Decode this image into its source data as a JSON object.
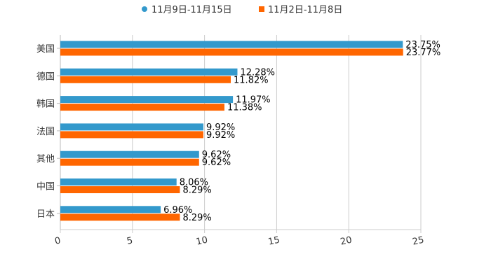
{
  "chart_data": {
    "type": "bar",
    "orientation": "horizontal",
    "categories": [
      "美国",
      "德国",
      "韩国",
      "法国",
      "其他",
      "中国",
      "日本"
    ],
    "series": [
      {
        "name": "11月9日-11月15日",
        "color": "#3399cc",
        "values": [
          23.75,
          12.28,
          11.97,
          9.92,
          9.62,
          8.06,
          6.96
        ],
        "labels": [
          "23.75%",
          "12.28%",
          "11.97%",
          "9.92%",
          "9.62%",
          "8.06%",
          "6.96%"
        ]
      },
      {
        "name": "11月2日-11月8日",
        "color": "#ff6600",
        "values": [
          23.77,
          11.82,
          11.38,
          9.92,
          9.62,
          8.29,
          8.29
        ],
        "labels": [
          "23.77%",
          "11.82%",
          "11.38%",
          "9.92%",
          "9.62%",
          "8.29%",
          "8.29%"
        ]
      }
    ],
    "xlim": [
      0,
      25
    ],
    "xticks": [
      0,
      5,
      10,
      15,
      20,
      25
    ],
    "xtick_labels": [
      "0",
      "5",
      "10",
      "15",
      "20",
      "25"
    ],
    "grid": true,
    "legend_position": "top-center",
    "title": "",
    "xlabel": "",
    "ylabel": ""
  }
}
